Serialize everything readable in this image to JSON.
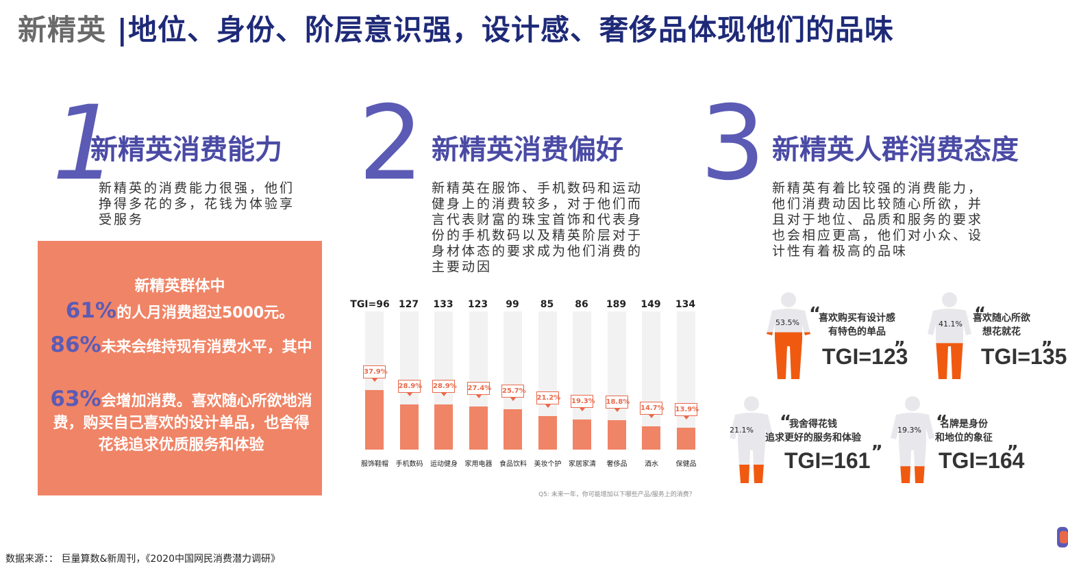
{
  "title": {
    "prefix": "新精英",
    "main": "|地位、身份、阶层意识强，设计感、奢侈品体现他们的品味"
  },
  "sections": [
    {
      "num": "1",
      "heading": "新精英消费能力",
      "desc": [
        "新精英的消费能力很强，他们",
        "挣得多花的多，花钱为体验享",
        "受服务"
      ]
    },
    {
      "num": "2",
      "heading": "新精英消费偏好",
      "desc": [
        "新精英在服饰、手机数码和运动",
        "健身上的消费较多，对于他们而",
        "言代表财富的珠宝首饰和代表身",
        "份的手机数码以及精英阶层对于",
        "身材体态的要求成为他们消费的",
        "主要动因"
      ]
    },
    {
      "num": "3",
      "heading": "新精英人群消费态度",
      "desc": [
        "新精英有着比较强的消费能力，",
        "他们消费动因比较随心所欲，并",
        "且对于地位、品质和服务的要求",
        "也会相应更高，他们对小众、设",
        "计性有着极高的品味"
      ]
    }
  ],
  "orange_box": {
    "line1": "新精英群体中",
    "p1_pct": "61%",
    "p1_text": "的人月消费超过5000元。",
    "p2_pct": "86%",
    "p2_text": "未来会维持现有消费水平，其中",
    "p3_pct": "63%",
    "p3_text": "会增加消费。喜欢随心所欲地消费，购买自己喜欢的设计单品，也舍得花钱追求优质服务和体验"
  },
  "chart_data": {
    "type": "bar",
    "categories": [
      "服饰鞋帽",
      "手机数码",
      "运动健身",
      "家用电器",
      "食品饮料",
      "美妆个护",
      "家居家清",
      "奢侈品",
      "酒水",
      "保健品"
    ],
    "values": [
      37.9,
      28.9,
      28.9,
      27.4,
      25.7,
      21.2,
      19.3,
      18.8,
      14.7,
      13.9
    ],
    "value_labels": [
      "37.9%",
      "28.9%",
      "28.9%",
      "27.4%",
      "25.7%",
      "21.2%",
      "19.3%",
      "18.8%",
      "14.7%",
      "13.9%"
    ],
    "tgi_labels": [
      "TGI=96",
      "127",
      "133",
      "123",
      "99",
      "85",
      "86",
      "189",
      "149",
      "134"
    ],
    "ylim": [
      0,
      100
    ],
    "note": "Q5: 未来一年，你可能增加以下哪些产品/服务上的消费？",
    "colors": {
      "bar": "#f08466",
      "track": "#f2f2f2"
    }
  },
  "attitudes": [
    {
      "pct": "53.5%",
      "quote": [
        "喜欢购买有设计感",
        "有特色的单品"
      ],
      "tgi": "TGI=123",
      "fill": 0.535
    },
    {
      "pct": "41.1%",
      "quote": [
        "喜欢随心所欲",
        "想花就花"
      ],
      "tgi": "TGI=135",
      "fill": 0.411
    },
    {
      "pct": "21.1%",
      "quote": [
        "我舍得花钱",
        "追求更好的服务和体验"
      ],
      "tgi": "TGI=161",
      "fill": 0.211
    },
    {
      "pct": "19.3%",
      "quote": [
        "名牌是身份",
        "和地位的象征"
      ],
      "tgi": "TGI=164",
      "fill": 0.193
    }
  ],
  "quote_open": "“",
  "quote_close": "„",
  "source": "数据来源：：  巨量算数&新周刊，《2020中国网民消费潜力调研》",
  "colors": {
    "accent": "#5b5bb5",
    "orange": "#f08466",
    "title_blue": "#1e2a78",
    "figure_grey": "#e8e8ec",
    "figure_orange": "#f05a10"
  }
}
